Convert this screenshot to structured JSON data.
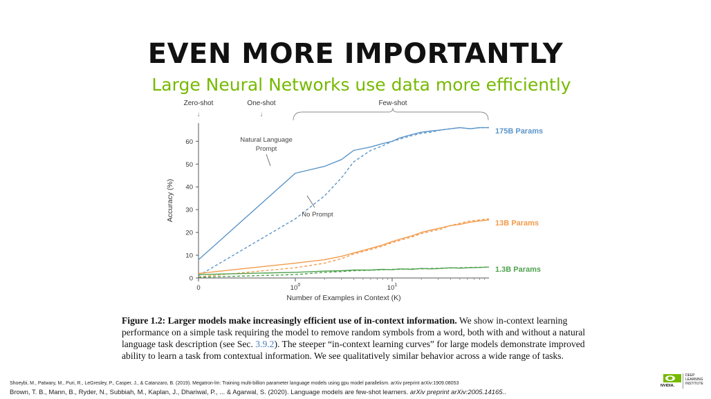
{
  "slide": {
    "title": "EVEN MORE IMPORTANTLY",
    "subtitle": "Large Neural Networks use data more efficiently"
  },
  "chart_data": {
    "type": "line",
    "xlabel": "Number of Examples in Context  (K)",
    "ylabel": "Accuracy (%)",
    "x_scale": "symlog",
    "x_ticks": [
      "0",
      "10^0",
      "10^1"
    ],
    "y_ticks": [
      0,
      10,
      20,
      30,
      40,
      50,
      60
    ],
    "ylim": [
      0,
      68
    ],
    "xlim": [
      0,
      100
    ],
    "grid": false,
    "regions": [
      "Zero-shot",
      "One-shot",
      "Few-shot"
    ],
    "annotations": [
      "Natural Language Prompt",
      "No Prompt"
    ],
    "colors": {
      "175B": "#5a95c9",
      "13B": "#f39a4a",
      "1.3B": "#4fa24f"
    },
    "series": [
      {
        "name": "175B Params",
        "style": "solid",
        "x": [
          0,
          1,
          2,
          3,
          4,
          6,
          8,
          10,
          12,
          16,
          20,
          25,
          32,
          40,
          50,
          64,
          80,
          100
        ],
        "y": [
          8,
          46,
          49,
          52,
          56,
          57.5,
          59,
          60,
          61.5,
          63,
          64,
          64.5,
          65,
          65.5,
          66,
          65.5,
          66,
          66
        ]
      },
      {
        "name": "175B Params",
        "style": "dashed",
        "x": [
          0,
          1,
          2,
          3,
          4,
          6,
          8,
          10,
          12,
          16,
          20,
          25,
          32,
          40,
          50,
          64,
          80,
          100
        ],
        "y": [
          1,
          26,
          36,
          44,
          51,
          56,
          58,
          60,
          61,
          62.5,
          63.5,
          64,
          65,
          65.5,
          66,
          65.5,
          66,
          66
        ]
      },
      {
        "name": "13B Params",
        "style": "solid",
        "x": [
          0,
          1,
          2,
          3,
          4,
          6,
          8,
          10,
          12,
          16,
          20,
          25,
          32,
          40,
          50,
          64,
          80,
          100
        ],
        "y": [
          2,
          6.5,
          8,
          9.5,
          11,
          13,
          14.5,
          16,
          17,
          18.5,
          20,
          21,
          22,
          23,
          23.5,
          24.5,
          25,
          25.5
        ]
      },
      {
        "name": "13B Params",
        "style": "dashed",
        "x": [
          0,
          1,
          2,
          3,
          4,
          6,
          8,
          10,
          12,
          16,
          20,
          25,
          32,
          40,
          50,
          64,
          80,
          100
        ],
        "y": [
          0.5,
          4.5,
          6.5,
          8.5,
          10.5,
          12.5,
          14,
          15.5,
          16.5,
          18,
          19.5,
          20.5,
          21.5,
          23,
          24,
          25,
          25.5,
          26
        ]
      },
      {
        "name": "1.3B Params",
        "style": "solid",
        "x": [
          0,
          1,
          2,
          3,
          4,
          6,
          8,
          10,
          12,
          16,
          20,
          25,
          32,
          40,
          50,
          64,
          80,
          100
        ],
        "y": [
          1.5,
          2.5,
          3,
          3.2,
          3.5,
          3.5,
          3.8,
          3.6,
          4,
          3.8,
          4.2,
          4,
          4.2,
          4.5,
          4.3,
          4.5,
          4.6,
          4.8
        ]
      },
      {
        "name": "1.3B Params",
        "style": "dashed",
        "x": [
          0,
          1,
          2,
          3,
          4,
          6,
          8,
          10,
          12,
          16,
          20,
          25,
          32,
          40,
          50,
          64,
          80,
          100
        ],
        "y": [
          0.3,
          1.5,
          2.5,
          2.8,
          3.2,
          3.4,
          3.6,
          3.8,
          3.8,
          4,
          4,
          4.2,
          4.3,
          4.4,
          4.5,
          4.6,
          4.7,
          4.8
        ]
      }
    ]
  },
  "caption": {
    "label": "Figure 1.2: Larger models make increasingly efficient use of in-context information.",
    "text_before_ref": " We show in-context learning performance on a simple task requiring the model to remove random symbols from a word, both with and without a natural language task description (see Sec. ",
    "ref": "3.9.2",
    "text_after_ref": "). The steeper “in-context learning curves” for large models demonstrate improved ability to learn a task from contextual information. We see qualitatively similar behavior across a wide range of tasks."
  },
  "references": {
    "shoeybi": "Shoeybi, M., Patwary, M., Puri, R., LeGresley, P., Casper, J., & Catanzaro, B. (2019). Megatron-lm: Training multi-billion parameter language models using gpu model parallelism. arXiv preprint arXiv:1909.08053",
    "brown_main": "Brown, T. B., Mann, B., Ryder, N., Subbiah, M., Kaplan, J., Dhariwal, P., ... & Agarwal, S. (2020). Language models are few-shot learners. ",
    "brown_journal": "arXiv preprint arXiv:2005.14165",
    "brown_end": ".."
  },
  "logo": {
    "brand": "NVIDIA.",
    "line1": "DEEP",
    "line2": "LEARNING",
    "line3": "INSTITUTE"
  }
}
